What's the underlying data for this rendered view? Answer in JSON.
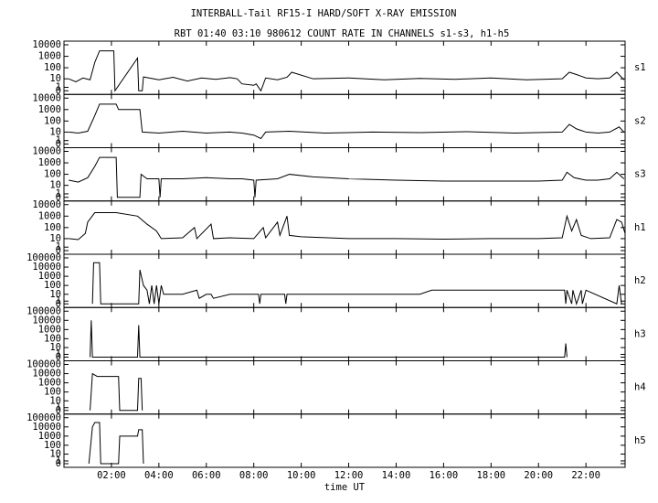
{
  "chart_data": {
    "type": "line",
    "title": "INTERBALL-Tail RF15-I HARD/SOFT X-RAY EMISSION",
    "subtitle": "RBT 01:40 03:10 980612  COUNT RATE IN CHANNELS s1-s3, h1-h5",
    "xlabel": "time UT",
    "yscale": "log1p",
    "color": "#000000",
    "xlim": [
      0,
      23.65
    ],
    "xticks": [
      {
        "value": 2,
        "label": "02:00"
      },
      {
        "value": 4,
        "label": "04:00"
      },
      {
        "value": 6,
        "label": "06:00"
      },
      {
        "value": 8,
        "label": "08:00"
      },
      {
        "value": 10,
        "label": "10:00"
      },
      {
        "value": 12,
        "label": "12:00"
      },
      {
        "value": 14,
        "label": "14:00"
      },
      {
        "value": 16,
        "label": "16:00"
      },
      {
        "value": 18,
        "label": "18:00"
      },
      {
        "value": 20,
        "label": "20:00"
      },
      {
        "value": 22,
        "label": "22:00"
      }
    ],
    "panels": [
      {
        "name": "s1",
        "ylim": [
          0,
          10000
        ],
        "yticks": [
          0,
          1,
          10,
          100,
          1000,
          10000
        ],
        "x": [
          0.2,
          0.5,
          0.8,
          1.1,
          1.3,
          1.5,
          1.9,
          2.1,
          2.15,
          3.1,
          3.15,
          3.3,
          3.35,
          4,
          4.6,
          5.2,
          5.8,
          6.4,
          7.0,
          7.3,
          7.5,
          8.0,
          8.1,
          8.3,
          8.5,
          9.0,
          9.4,
          9.6,
          10.5,
          12,
          13.5,
          15,
          16.5,
          18,
          19.5,
          21,
          21.3,
          21.6,
          22,
          22.5,
          23,
          23.3,
          23.6
        ],
        "values": [
          10,
          5,
          12,
          8,
          300,
          3000,
          3000,
          3000,
          0,
          700,
          0,
          0,
          15,
          8,
          14,
          6,
          12,
          9,
          13,
          10,
          3,
          2,
          3,
          0,
          12,
          8,
          14,
          40,
          10,
          12,
          8,
          11,
          9,
          12,
          8,
          10,
          40,
          25,
          12,
          10,
          12,
          40,
          8
        ]
      },
      {
        "name": "s2",
        "ylim": [
          0,
          10000
        ],
        "yticks": [
          0,
          1,
          10,
          100,
          1000,
          10000
        ],
        "x": [
          0.2,
          0.6,
          1.0,
          1.3,
          1.5,
          2.2,
          2.3,
          3.2,
          3.3,
          4,
          5,
          6,
          7,
          7.5,
          8,
          8.3,
          8.5,
          9.5,
          11,
          13,
          15,
          17,
          19,
          21,
          21.3,
          21.6,
          22,
          22.5,
          23,
          23.4,
          23.6
        ],
        "values": [
          10,
          8,
          12,
          300,
          3000,
          3000,
          1000,
          1000,
          10,
          8,
          12,
          8,
          10,
          8,
          5,
          2,
          10,
          12,
          8,
          10,
          9,
          11,
          8,
          10,
          50,
          20,
          10,
          8,
          10,
          30,
          10
        ]
      },
      {
        "name": "s3",
        "ylim": [
          0,
          10000
        ],
        "yticks": [
          0,
          1,
          10,
          100,
          1000,
          10000
        ],
        "x": [
          0.2,
          0.6,
          1.0,
          1.3,
          1.5,
          2.2,
          2.25,
          3.2,
          3.25,
          3.5,
          4,
          4.05,
          4.1,
          5,
          6,
          7,
          7.5,
          8.0,
          8.05,
          8.1,
          9,
          9.5,
          10.5,
          12,
          14,
          16,
          18,
          20,
          21,
          21.2,
          21.5,
          22,
          22.5,
          23,
          23.3,
          23.6
        ],
        "values": [
          30,
          20,
          50,
          500,
          3000,
          3000,
          0,
          0,
          100,
          40,
          40,
          0,
          40,
          40,
          50,
          40,
          40,
          30,
          0,
          30,
          40,
          100,
          60,
          40,
          30,
          25,
          25,
          25,
          30,
          150,
          50,
          30,
          30,
          40,
          150,
          40
        ]
      },
      {
        "name": "h1",
        "ylim": [
          0,
          10000
        ],
        "yticks": [
          0,
          1,
          10,
          100,
          1000,
          10000
        ],
        "x": [
          0.2,
          0.6,
          0.9,
          1.0,
          1.3,
          2.2,
          3.1,
          3.5,
          3.9,
          4.1,
          5,
          5.5,
          5.6,
          6.2,
          6.3,
          7,
          8,
          8.4,
          8.5,
          9.0,
          9.1,
          9.4,
          9.5,
          10,
          12,
          14,
          16,
          18,
          20,
          21.0,
          21.2,
          21.4,
          21.6,
          21.8,
          22.2,
          23,
          23.3,
          23.5,
          23.65
        ],
        "values": [
          10,
          8,
          30,
          300,
          2000,
          2000,
          1000,
          200,
          50,
          10,
          12,
          100,
          10,
          200,
          10,
          12,
          10,
          100,
          12,
          300,
          20,
          1000,
          20,
          15,
          10,
          10,
          9,
          10,
          10,
          12,
          1000,
          50,
          500,
          20,
          10,
          12,
          500,
          300,
          30
        ]
      },
      {
        "name": "h2",
        "ylim": [
          0,
          100000
        ],
        "yticks": [
          0,
          1,
          10,
          100,
          1000,
          10000,
          100000
        ],
        "x": [
          1.2,
          1.25,
          1.5,
          1.55,
          3.15,
          3.2,
          3.35,
          3.5,
          3.6,
          3.7,
          3.8,
          3.9,
          4.0,
          4.1,
          4.2,
          5,
          5.6,
          5.7,
          6.0,
          6.2,
          6.3,
          7,
          8.2,
          8.25,
          8.3,
          9.3,
          9.35,
          9.4,
          15,
          15.5,
          21.1,
          21.15,
          21.2,
          21.4,
          21.45,
          21.6,
          21.8,
          21.85,
          22,
          23.3,
          23.4,
          23.5
        ],
        "values": [
          0,
          30000,
          30000,
          0,
          0,
          5000,
          100,
          30,
          0,
          100,
          0,
          100,
          0,
          100,
          10,
          10,
          30,
          3,
          10,
          10,
          3,
          10,
          10,
          0,
          10,
          10,
          0,
          10,
          10,
          30,
          30,
          0,
          30,
          0,
          30,
          0,
          30,
          0,
          30,
          0,
          100,
          0
        ]
      },
      {
        "name": "h3",
        "ylim": [
          0,
          100000
        ],
        "yticks": [
          0,
          1,
          10,
          100,
          1000,
          10000,
          100000
        ],
        "x": [
          1.1,
          1.15,
          1.2,
          3.1,
          3.15,
          3.2,
          21.1,
          21.15,
          21.2
        ],
        "values": [
          0,
          10000,
          0,
          0,
          3000,
          0,
          0,
          30,
          0
        ]
      },
      {
        "name": "h4",
        "ylim": [
          0,
          100000
        ],
        "yticks": [
          0,
          1,
          10,
          100,
          1000,
          10000,
          100000
        ],
        "x": [
          1.1,
          1.2,
          1.4,
          2.3,
          2.35,
          3.1,
          3.15,
          3.25,
          3.3
        ],
        "values": [
          0,
          10000,
          5000,
          5000,
          0,
          0,
          3000,
          3000,
          0
        ]
      },
      {
        "name": "h5",
        "ylim": [
          0,
          100000
        ],
        "yticks": [
          0,
          1,
          10,
          100,
          1000,
          10000,
          100000
        ],
        "x": [
          1.05,
          1.2,
          1.3,
          1.5,
          1.55,
          2.3,
          2.35,
          3.1,
          3.15,
          3.3,
          3.35
        ],
        "values": [
          0,
          10000,
          30000,
          30000,
          0,
          0,
          1000,
          1000,
          5000,
          5000,
          0
        ]
      }
    ]
  }
}
